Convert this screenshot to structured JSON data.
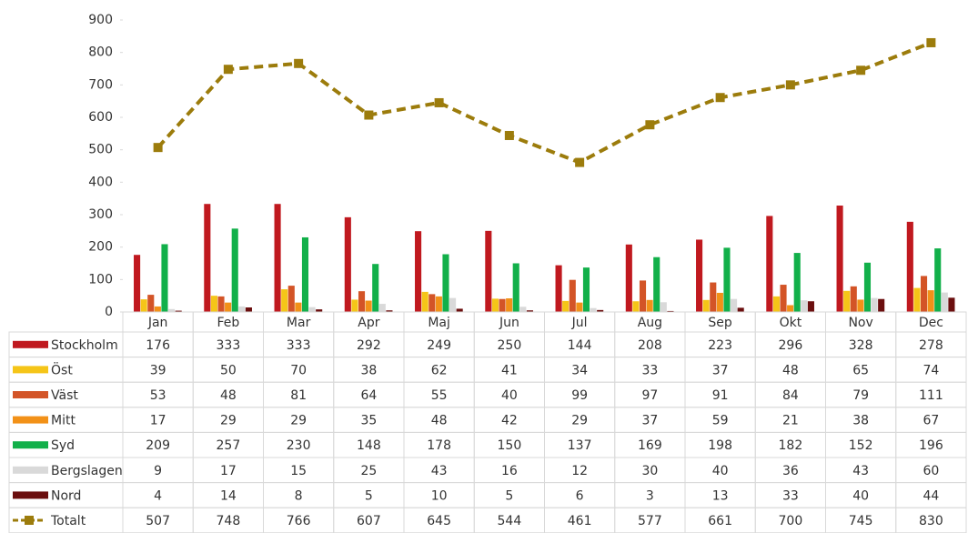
{
  "chart_data": {
    "type": "bar",
    "categories": [
      "Jan",
      "Feb",
      "Mar",
      "Apr",
      "Maj",
      "Jun",
      "Jul",
      "Aug",
      "Sep",
      "Okt",
      "Nov",
      "Dec"
    ],
    "series": [
      {
        "name": "Stockholm",
        "color": "#c0191f",
        "values": [
          176,
          333,
          333,
          292,
          249,
          250,
          144,
          208,
          223,
          296,
          328,
          278
        ]
      },
      {
        "name": "Öst",
        "color": "#f5c518",
        "values": [
          39,
          50,
          70,
          38,
          62,
          41,
          34,
          33,
          37,
          48,
          65,
          74
        ]
      },
      {
        "name": "Väst",
        "color": "#d35427",
        "values": [
          53,
          48,
          81,
          64,
          55,
          40,
          99,
          97,
          91,
          84,
          79,
          111
        ]
      },
      {
        "name": "Mitt",
        "color": "#f29118",
        "values": [
          17,
          29,
          29,
          35,
          48,
          42,
          29,
          37,
          59,
          21,
          38,
          67
        ]
      },
      {
        "name": "Syd",
        "color": "#12b04a",
        "values": [
          209,
          257,
          230,
          148,
          178,
          150,
          137,
          169,
          198,
          182,
          152,
          196
        ]
      },
      {
        "name": "Bergslagen",
        "color": "#d9d9d9",
        "values": [
          9,
          17,
          15,
          25,
          43,
          16,
          12,
          30,
          40,
          36,
          43,
          60
        ]
      },
      {
        "name": "Nord",
        "color": "#6b0e0e",
        "values": [
          4,
          14,
          8,
          5,
          10,
          5,
          6,
          3,
          13,
          33,
          40,
          44
        ]
      },
      {
        "name": "Totalt",
        "color": "#9c7c0c",
        "type": "line",
        "values": [
          507,
          748,
          766,
          607,
          645,
          544,
          461,
          577,
          661,
          700,
          745,
          830
        ]
      }
    ],
    "ylim": [
      0,
      900
    ],
    "yticks": [
      0,
      100,
      200,
      300,
      400,
      500,
      600,
      700,
      800,
      900
    ],
    "data_table": true
  }
}
